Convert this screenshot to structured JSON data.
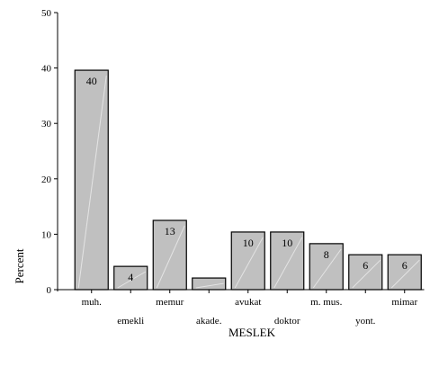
{
  "chart_data": {
    "type": "bar",
    "categories": [
      "muh.",
      "emekli",
      "memur",
      "akade.",
      "avukat",
      "doktor",
      "m. mus.",
      "yont.",
      "mimar"
    ],
    "values": [
      39.6,
      4.2,
      12.5,
      2.1,
      10.4,
      10.4,
      8.3,
      6.3,
      6.3
    ],
    "data_labels": [
      "40",
      "4",
      "13",
      "",
      "10",
      "10",
      "8",
      "6",
      "6"
    ],
    "xlabel": "MESLEK",
    "ylabel": "Percent",
    "ylim": [
      0,
      50
    ],
    "yticks": [
      0,
      10,
      20,
      30,
      40,
      50
    ],
    "grid": false,
    "colors": {
      "bar_fill": "#c0c0c0",
      "bar_stroke": "#000000",
      "highlight": "#e4e4e4"
    }
  }
}
